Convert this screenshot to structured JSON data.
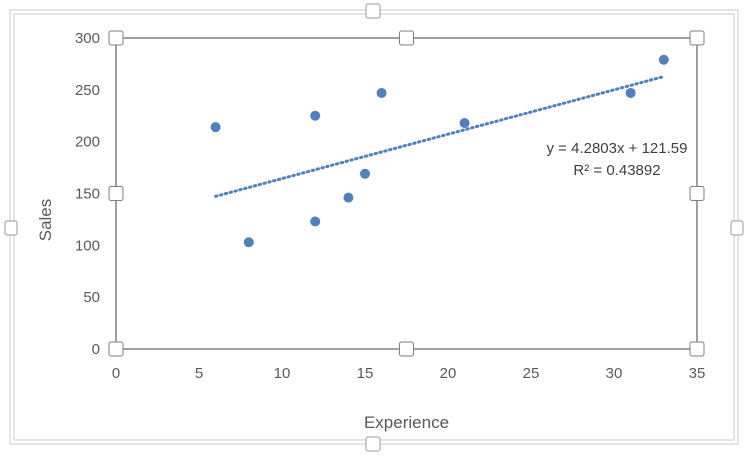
{
  "chart_data": {
    "type": "scatter",
    "title": "",
    "xlabel": "Experience",
    "ylabel": "Sales",
    "xlim": [
      0,
      35
    ],
    "ylim": [
      0,
      300
    ],
    "xticks": [
      0,
      5,
      10,
      15,
      20,
      25,
      30,
      35
    ],
    "yticks": [
      0,
      50,
      100,
      150,
      200,
      250,
      300
    ],
    "grid": false,
    "legend": "none",
    "series": [
      {
        "x": [
          6,
          8,
          12,
          12,
          14,
          15,
          16,
          21,
          31,
          33
        ],
        "y": [
          214,
          103,
          225,
          123,
          146,
          169,
          247,
          218,
          247,
          279
        ],
        "color": "#4F81BD"
      }
    ],
    "trendline": {
      "type": "linear",
      "slope": 4.2803,
      "intercept": 121.59,
      "x_range": [
        6,
        33
      ],
      "style": "dotted",
      "color": "#4F81BD",
      "equation_label": "y = 4.2803x + 121.59",
      "r2_label": "R² = 0.43892"
    }
  }
}
